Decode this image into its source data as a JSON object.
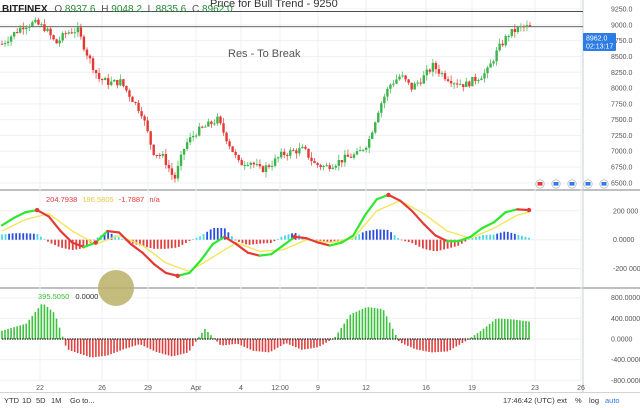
{
  "header": {
    "title_partial": "Price for Bull Trend - 9250",
    "symbol": "BITFINEX",
    "open_label": "O",
    "open": "8937.6",
    "high_label": "H",
    "high": "9048.2",
    "low_label": "L",
    "low": "8835.6",
    "close_label": "C",
    "close": "8962.0"
  },
  "annotation": "Res - To Break",
  "price_badge": {
    "price": "8962.0",
    "countdown": "02:13:17",
    "color": "#2d7be5"
  },
  "indicator1": {
    "label": "",
    "v1": "204.7938",
    "v2": "196.5805",
    "v3": "-1.7887",
    "v4": "n/a",
    "v1_color": "#e53935",
    "v2_color": "#e6c84a",
    "v3_color": "#e53935"
  },
  "indicator2": {
    "v1": "395.5050",
    "v2": "0.0000"
  },
  "bottom_toolbar": {
    "ranges": [
      "YTD",
      "1D",
      "5D",
      "1M",
      "5Y",
      "Go to..."
    ],
    "time": "17:46:42 (UTC)",
    "ext": "ext",
    "pct": "%",
    "log": "log",
    "auto": "auto"
  },
  "colors": {
    "up": "#26a69a",
    "up_candle": "#3bb54a",
    "down": "#e53935",
    "grid": "#eef0f3",
    "osc_green": "#2ee82e",
    "osc_yellow": "#f2e65a",
    "hist_blue": "#2c4ee0",
    "hist_cyan": "#46d8e8",
    "hist_red": "#e04040",
    "hist_green": "#3cc23c"
  },
  "chart_data": {
    "type": "candlestick",
    "price_axis": {
      "ticks": [
        9250,
        9000,
        8750,
        8500,
        8250,
        8000,
        7750,
        7500,
        7250,
        7000,
        6750,
        6500
      ],
      "ylim": [
        6450,
        9330
      ]
    },
    "x_axis": {
      "ticks": [
        "22",
        "26",
        "29",
        "Apr",
        "4",
        "12:00",
        "9",
        "12",
        "16",
        "19",
        "23",
        "26"
      ]
    },
    "resistance_lines": [
      9210,
      8970
    ],
    "price_path": [
      [
        0,
        8700
      ],
      [
        3,
        8850
      ],
      [
        6,
        8990
      ],
      [
        9,
        9030
      ],
      [
        12,
        8950
      ],
      [
        15,
        8700
      ],
      [
        18,
        8880
      ],
      [
        21,
        8920
      ],
      [
        24,
        8500
      ],
      [
        27,
        8150
      ],
      [
        30,
        8080
      ],
      [
        33,
        8100
      ],
      [
        36,
        7850
      ],
      [
        39,
        7600
      ],
      [
        42,
        7000
      ],
      [
        45,
        6900
      ],
      [
        48,
        6550
      ],
      [
        51,
        7100
      ],
      [
        54,
        7300
      ],
      [
        57,
        7400
      ],
      [
        60,
        7500
      ],
      [
        63,
        7150
      ],
      [
        66,
        6800
      ],
      [
        69,
        6850
      ],
      [
        72,
        6700
      ],
      [
        75,
        6800
      ],
      [
        78,
        6950
      ],
      [
        81,
        7000
      ],
      [
        84,
        7030
      ],
      [
        87,
        6800
      ],
      [
        90,
        6750
      ],
      [
        93,
        6820
      ],
      [
        96,
        6900
      ],
      [
        99,
        6950
      ],
      [
        102,
        7150
      ],
      [
        105,
        7700
      ],
      [
        108,
        8050
      ],
      [
        111,
        8200
      ],
      [
        114,
        8000
      ],
      [
        117,
        8150
      ],
      [
        120,
        8350
      ],
      [
        123,
        8200
      ],
      [
        126,
        8100
      ],
      [
        129,
        8050
      ],
      [
        132,
        8150
      ],
      [
        135,
        8250
      ],
      [
        138,
        8600
      ],
      [
        141,
        8850
      ],
      [
        144,
        8950
      ],
      [
        147,
        8970
      ]
    ],
    "osc1": {
      "axis_ticks": [
        200000,
        0,
        -200000
      ],
      "ylim": [
        -320000,
        330000
      ],
      "fast": [
        [
          0,
          100000
        ],
        [
          2,
          150000
        ],
        [
          4,
          190000
        ],
        [
          6,
          205000
        ],
        [
          8,
          160000
        ],
        [
          10,
          60000
        ],
        [
          12,
          -20000
        ],
        [
          14,
          -50000
        ],
        [
          16,
          -20000
        ],
        [
          18,
          60000
        ],
        [
          20,
          50000
        ],
        [
          22,
          -30000
        ],
        [
          24,
          -90000
        ],
        [
          26,
          -170000
        ],
        [
          28,
          -230000
        ],
        [
          30,
          -250000
        ],
        [
          32,
          -230000
        ],
        [
          34,
          -140000
        ],
        [
          36,
          -30000
        ],
        [
          38,
          20000
        ],
        [
          40,
          -30000
        ],
        [
          42,
          -90000
        ],
        [
          44,
          -110000
        ],
        [
          46,
          -100000
        ],
        [
          48,
          -40000
        ],
        [
          50,
          20000
        ],
        [
          52,
          10000
        ],
        [
          54,
          -20000
        ],
        [
          56,
          -40000
        ],
        [
          58,
          -20000
        ],
        [
          60,
          30000
        ],
        [
          62,
          170000
        ],
        [
          64,
          280000
        ],
        [
          66,
          310000
        ],
        [
          68,
          270000
        ],
        [
          70,
          200000
        ],
        [
          72,
          110000
        ],
        [
          74,
          30000
        ],
        [
          76,
          -10000
        ],
        [
          78,
          -10000
        ],
        [
          80,
          20000
        ],
        [
          82,
          80000
        ],
        [
          84,
          120000
        ],
        [
          86,
          190000
        ],
        [
          88,
          210000
        ],
        [
          90,
          205000
        ]
      ],
      "signal": [
        [
          0,
          60000
        ],
        [
          4,
          140000
        ],
        [
          8,
          180000
        ],
        [
          12,
          60000
        ],
        [
          16,
          -30000
        ],
        [
          20,
          30000
        ],
        [
          24,
          -40000
        ],
        [
          28,
          -160000
        ],
        [
          32,
          -220000
        ],
        [
          36,
          -120000
        ],
        [
          40,
          -20000
        ],
        [
          44,
          -80000
        ],
        [
          48,
          -70000
        ],
        [
          52,
          0
        ],
        [
          56,
          -20000
        ],
        [
          60,
          10000
        ],
        [
          64,
          200000
        ],
        [
          68,
          270000
        ],
        [
          72,
          180000
        ],
        [
          76,
          60000
        ],
        [
          80,
          10000
        ],
        [
          84,
          80000
        ],
        [
          88,
          170000
        ],
        [
          90,
          190000
        ]
      ]
    },
    "osc2": {
      "axis_ticks": [
        800000,
        400000,
        0,
        -400000,
        -800000
      ],
      "ylim": [
        -950000,
        950000
      ],
      "envelope": [
        [
          0,
          160000
        ],
        [
          6,
          300000
        ],
        [
          10,
          700000
        ],
        [
          13,
          500000
        ],
        [
          16,
          -200000
        ],
        [
          22,
          -360000
        ],
        [
          26,
          -320000
        ],
        [
          30,
          -200000
        ],
        [
          34,
          -100000
        ],
        [
          38,
          -250000
        ],
        [
          42,
          -340000
        ],
        [
          46,
          -260000
        ],
        [
          50,
          200000
        ],
        [
          52,
          40000
        ],
        [
          54,
          -130000
        ],
        [
          58,
          -90000
        ],
        [
          62,
          -230000
        ],
        [
          66,
          -260000
        ],
        [
          70,
          -80000
        ],
        [
          74,
          -210000
        ],
        [
          78,
          -160000
        ],
        [
          82,
          20000
        ],
        [
          86,
          480000
        ],
        [
          90,
          620000
        ],
        [
          94,
          580000
        ],
        [
          98,
          -60000
        ],
        [
          102,
          -200000
        ],
        [
          106,
          -260000
        ],
        [
          110,
          -240000
        ],
        [
          114,
          -60000
        ],
        [
          118,
          150000
        ],
        [
          122,
          400000
        ],
        [
          126,
          380000
        ],
        [
          130,
          340000
        ]
      ]
    }
  }
}
